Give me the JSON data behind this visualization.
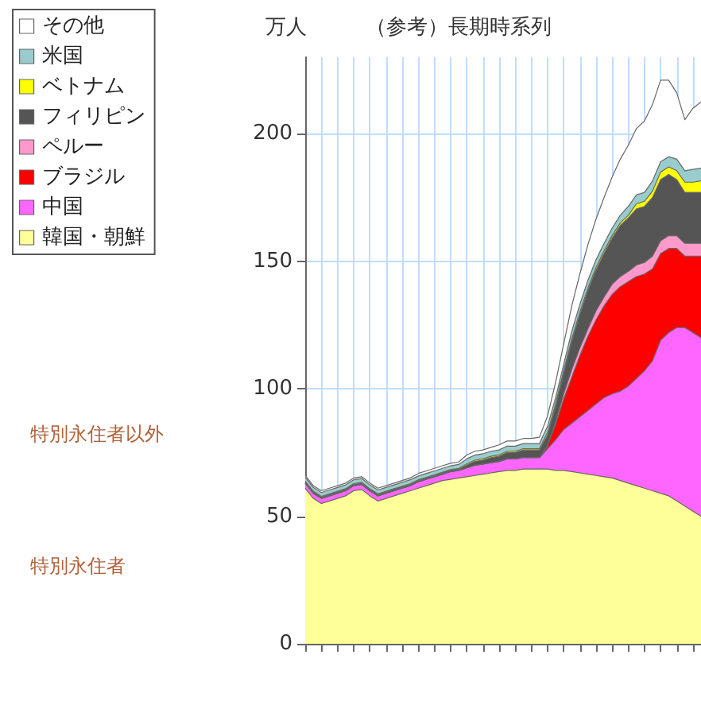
{
  "chart_data": {
    "type": "area",
    "stacked": true,
    "title": "（参考）長期時系列",
    "ylabel": "万人",
    "annotations": [
      "特別永住者以外",
      "特別永住者"
    ],
    "categories": [
      null,
      null,
      null,
      null,
      null,
      null,
      null,
      null,
      null,
      null,
      null,
      null,
      null,
      null,
      null,
      null,
      null,
      null,
      null,
      null,
      null,
      null,
      null,
      null,
      null,
      null,
      null,
      null,
      null,
      null,
      null,
      null,
      null,
      null,
      null,
      null,
      null,
      null,
      null,
      null,
      null,
      null,
      null,
      null,
      null,
      null,
      null,
      null,
      null,
      null
    ],
    "ylim": [
      0,
      230
    ],
    "yticks": [
      0,
      50,
      100,
      150,
      200
    ],
    "grid": true,
    "legend": "left",
    "tick_labels": "y",
    "series": [
      {
        "name": "韓国・朝鮮",
        "color": "#ffff99",
        "values": [
          61,
          57,
          55,
          56,
          57,
          58,
          60,
          60.5,
          58,
          56,
          57,
          58,
          59,
          60,
          61,
          62,
          63,
          64,
          64.5,
          65,
          65.5,
          66,
          66.5,
          67,
          67.5,
          68,
          68,
          68.5,
          68.5,
          68.5,
          68.5,
          68,
          68,
          67.5,
          67,
          66.5,
          66,
          65.5,
          65,
          64,
          63,
          62,
          61,
          60,
          59,
          58,
          56,
          54,
          52,
          50
        ]
      },
      {
        "name": "中国",
        "color": "#ff66ff",
        "values": [
          2,
          2,
          2,
          2,
          2,
          2,
          2,
          2,
          2,
          2,
          2,
          2,
          2,
          2,
          2.5,
          2.5,
          2.5,
          2.5,
          3,
          3,
          3.5,
          4,
          4,
          4,
          4,
          4.5,
          4.5,
          4.5,
          4.5,
          4.5,
          8,
          12,
          16,
          19,
          22,
          25,
          28,
          31,
          33,
          35,
          38,
          42,
          46,
          51,
          60,
          64,
          68,
          70,
          70,
          70
        ]
      },
      {
        "name": "ブラジル",
        "color": "#ff0000",
        "values": [
          0,
          0,
          0,
          0,
          0,
          0,
          0,
          0,
          0,
          0,
          0,
          0,
          0,
          0,
          0,
          0,
          0,
          0,
          0,
          0,
          0,
          0,
          0,
          0,
          0,
          0,
          0,
          0,
          0,
          0,
          1,
          6,
          12,
          18,
          24,
          29,
          33,
          36,
          39,
          41,
          41,
          40,
          38,
          36,
          34,
          33,
          31,
          28,
          30,
          32
        ]
      },
      {
        "name": "ペルー",
        "color": "#ff99cc",
        "values": [
          0,
          0,
          0,
          0,
          0,
          0,
          0,
          0,
          0,
          0,
          0,
          0,
          0,
          0,
          0,
          0,
          0,
          0,
          0,
          0,
          0,
          0,
          0,
          0,
          0,
          0,
          0,
          0,
          0,
          0,
          0.3,
          1,
          2,
          3,
          3,
          3,
          3.5,
          3.5,
          4,
          4,
          4,
          4.5,
          4.5,
          5,
          5,
          5,
          5,
          5,
          5,
          5
        ]
      },
      {
        "name": "フィリピン",
        "color": "#555555",
        "values": [
          0.5,
          0.5,
          0.5,
          0.5,
          0.5,
          0.5,
          0.5,
          0.5,
          0.5,
          0.5,
          0.5,
          0.5,
          0.5,
          0.5,
          0.5,
          0.5,
          0.5,
          0.5,
          0.5,
          0.5,
          1,
          1.5,
          1.5,
          2,
          2,
          2.5,
          2.5,
          3,
          3,
          3,
          4,
          6,
          8,
          11,
          13,
          15,
          16,
          17,
          18,
          20,
          21,
          22,
          22,
          23,
          24,
          24,
          22,
          20,
          20,
          20
        ]
      },
      {
        "name": "ベトナム",
        "color": "#ffff00",
        "values": [
          0.3,
          0.3,
          0.3,
          0.3,
          0.3,
          0.3,
          0.3,
          0.3,
          0.3,
          0.3,
          0.3,
          0.3,
          0.3,
          0.3,
          0.3,
          0.3,
          0.3,
          0.3,
          0.3,
          0.3,
          0.5,
          0.5,
          0.5,
          0.5,
          0.5,
          0.5,
          0.5,
          0.5,
          0.5,
          0.5,
          1,
          1,
          1,
          1,
          1,
          1,
          1,
          1,
          1,
          1,
          1,
          2,
          2,
          2.5,
          3,
          3,
          3.5,
          4,
          4,
          4.5
        ]
      },
      {
        "name": "米国",
        "color": "#99cccc",
        "values": [
          1.5,
          1.5,
          1.5,
          1.5,
          1.5,
          1.5,
          1.5,
          1.5,
          1.5,
          1.5,
          1.5,
          1.5,
          1.5,
          1.5,
          1.5,
          1.5,
          1.5,
          1.5,
          1.5,
          1.5,
          2,
          2,
          2,
          2,
          2,
          2,
          2,
          2,
          2,
          2,
          2.5,
          2.5,
          2.5,
          3,
          3,
          3,
          3,
          3,
          3,
          3,
          3.5,
          3.5,
          3.5,
          4,
          4,
          4,
          4.5,
          4.5,
          5,
          5
        ]
      },
      {
        "name": "その他",
        "color": "#ffffff",
        "values": [
          0.7,
          0.7,
          0.7,
          0.7,
          0.7,
          0.7,
          0.7,
          0.7,
          0.7,
          0.7,
          0.7,
          0.7,
          0.7,
          0.7,
          1,
          1,
          1,
          1,
          1,
          1,
          1.5,
          1.5,
          1.5,
          1.5,
          2,
          2,
          2,
          2,
          2,
          2.5,
          4,
          6,
          8,
          10,
          12,
          14,
          16,
          18,
          20,
          22,
          24,
          26,
          28,
          30,
          32,
          30,
          26,
          20,
          24,
          26
        ]
      }
    ]
  }
}
